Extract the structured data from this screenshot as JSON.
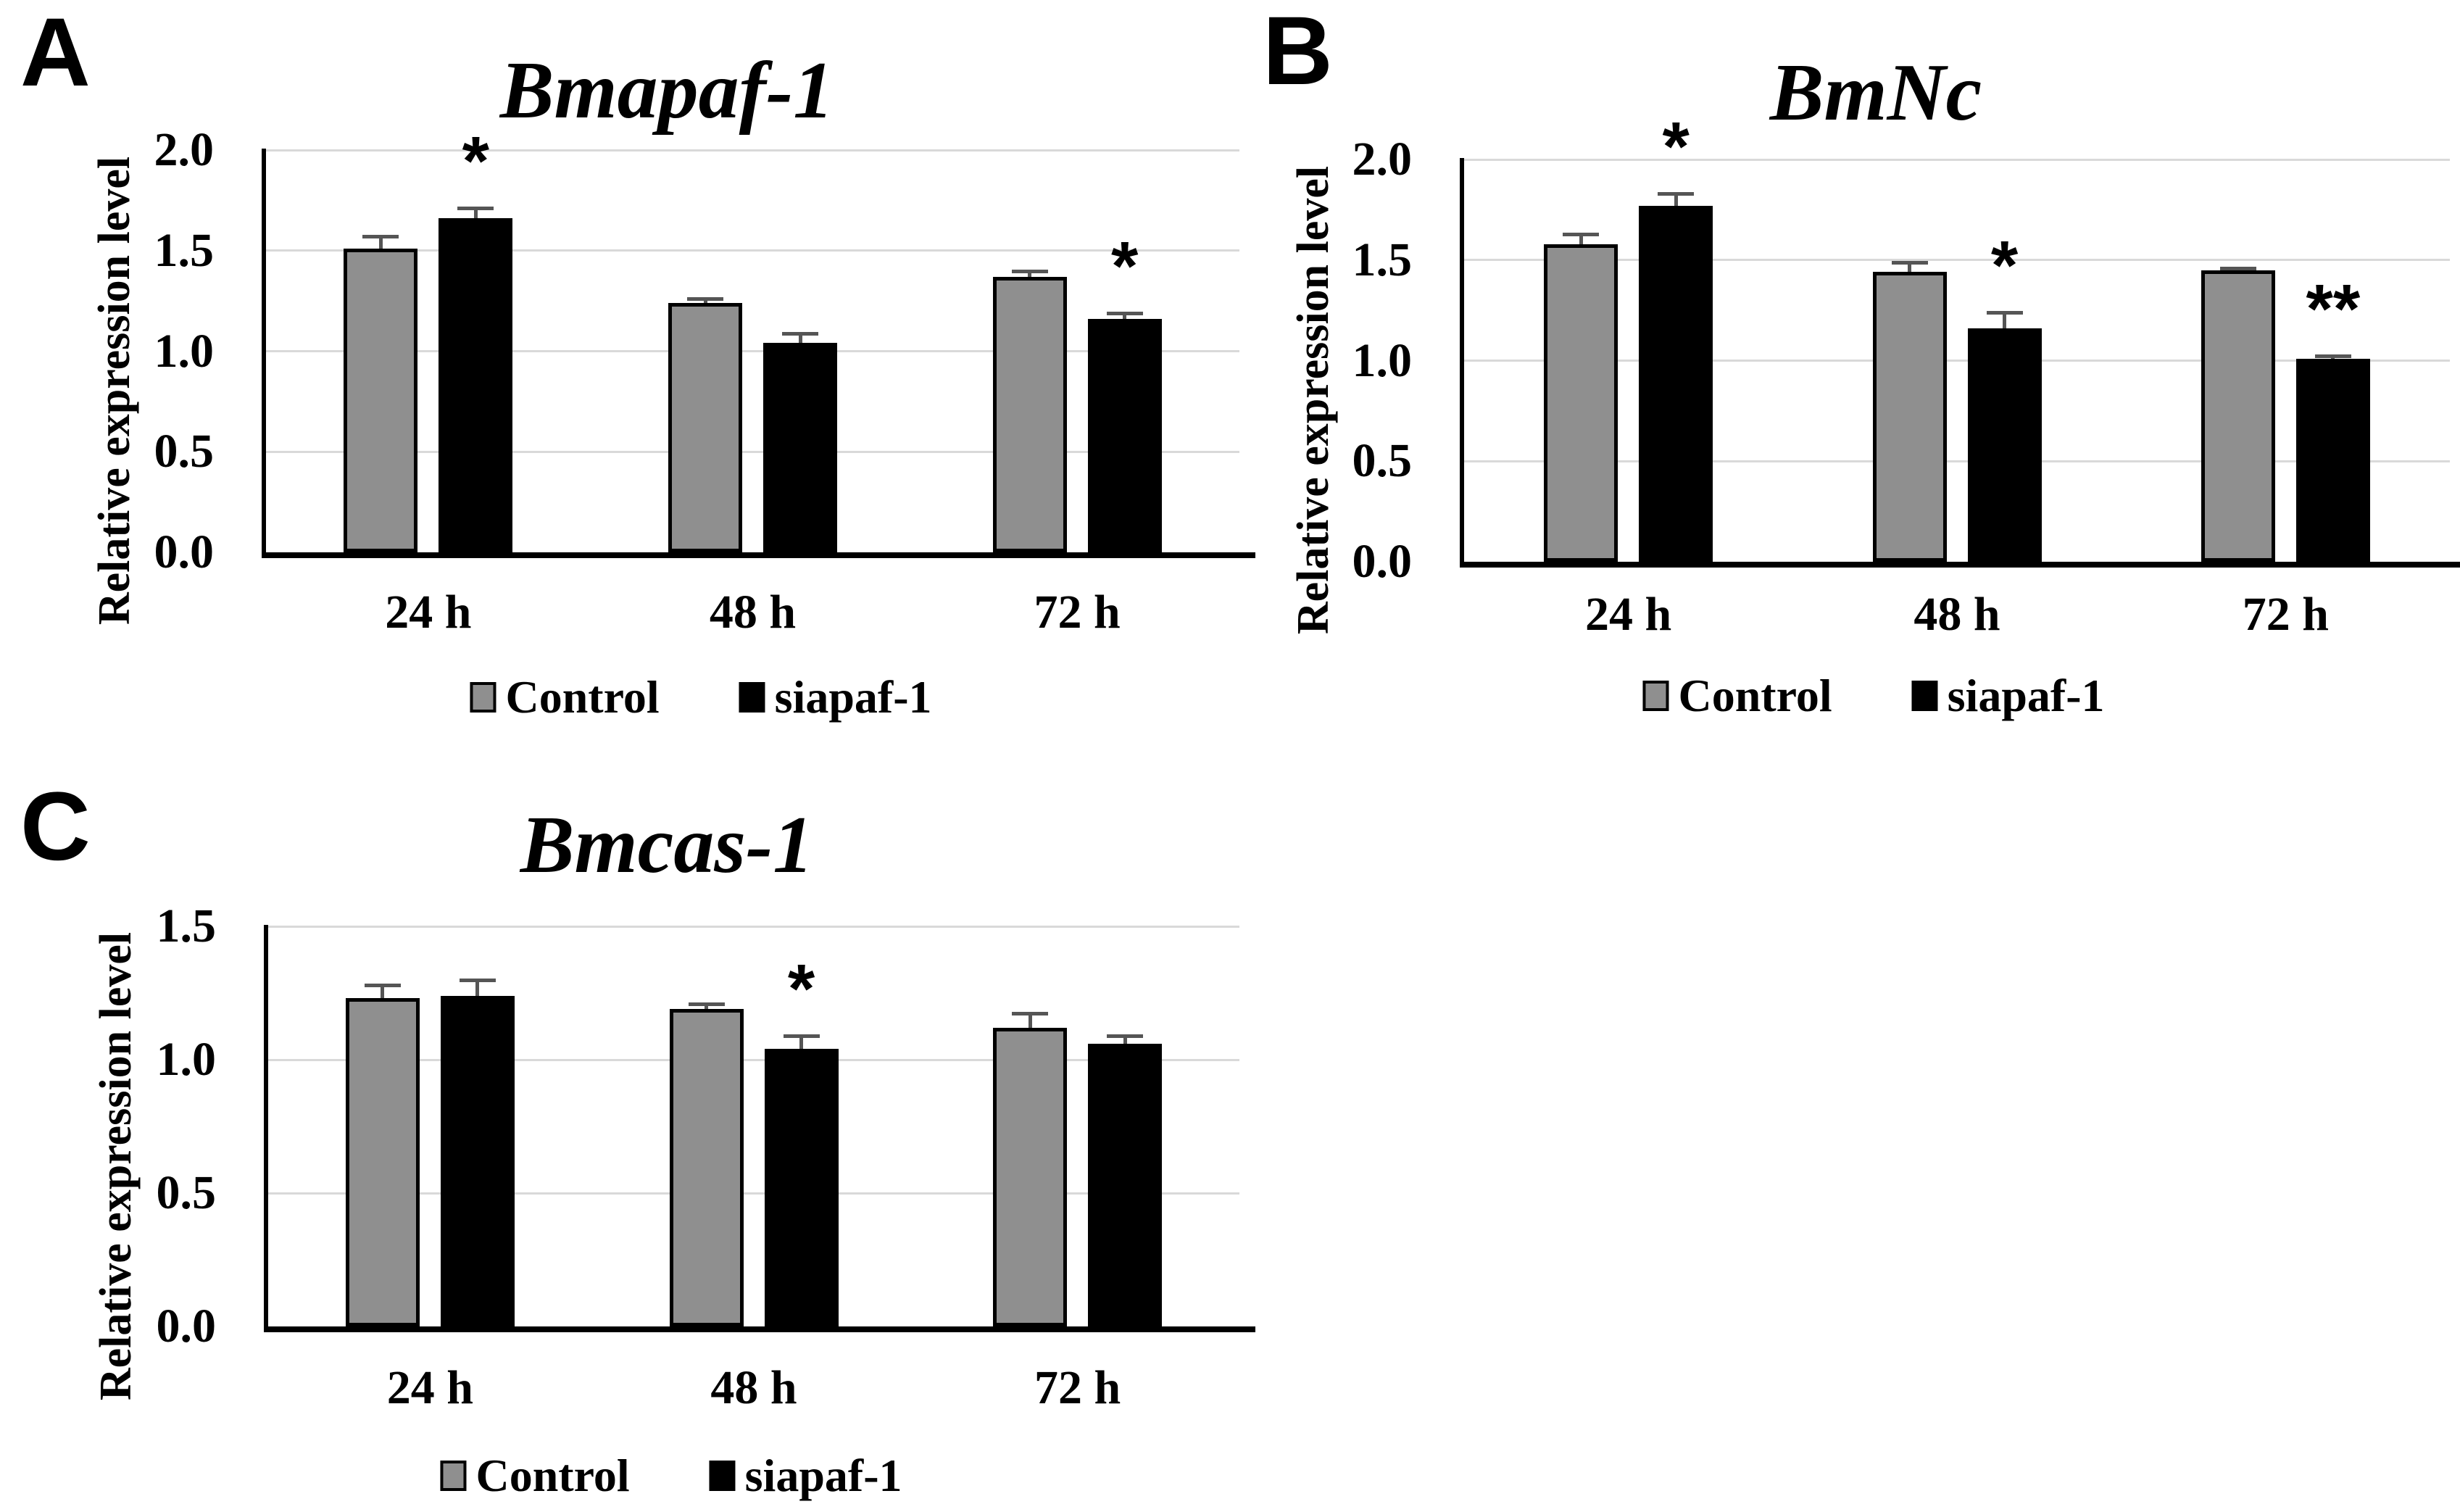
{
  "figure_type": "multi-panel-bar-figure",
  "colors": {
    "control_bar": "#8F8F8F",
    "sirna_bar": "#000000",
    "bar_border": "#000000",
    "error_bar": "#555555",
    "gridline": "#D9D9D9",
    "axis": "#000000",
    "background": "#FFFFFF"
  },
  "chart_data": [
    {
      "type": "bar",
      "panel_label": "A",
      "title": "Bmapaf-1",
      "ylabel": "Relative expression level",
      "xlabel": "",
      "ylim": [
        0.0,
        2.0
      ],
      "ymax": 2.0,
      "ytick_step": 0.5,
      "yticks": [
        "2.0",
        "1.5",
        "1.0",
        "0.5",
        "0.0"
      ],
      "grid": true,
      "legend_position": "bottom",
      "categories": [
        "24 h",
        "48 h",
        "72 h"
      ],
      "series": [
        {
          "name": "Control",
          "values": [
            1.51,
            1.24,
            1.37
          ],
          "errors": [
            0.06,
            0.02,
            0.03
          ]
        },
        {
          "name": "siapaf-1",
          "values": [
            1.66,
            1.04,
            1.16
          ],
          "errors": [
            0.05,
            0.05,
            0.03
          ]
        }
      ],
      "significance_on_siapaf1": [
        "*",
        "",
        "*"
      ]
    },
    {
      "type": "bar",
      "panel_label": "B",
      "title": "BmNc",
      "ylabel": "Relative expression level",
      "xlabel": "",
      "ylim": [
        0.0,
        2.0
      ],
      "ymax": 2.0,
      "ytick_step": 0.5,
      "yticks": [
        "2.0",
        "1.5",
        "1.0",
        "0.5",
        "0.0"
      ],
      "grid": true,
      "legend_position": "bottom",
      "categories": [
        "24 h",
        "48 h",
        "72 h"
      ],
      "series": [
        {
          "name": "Control",
          "values": [
            1.58,
            1.44,
            1.45
          ],
          "errors": [
            0.05,
            0.05,
            0.01
          ]
        },
        {
          "name": "siapaf-1",
          "values": [
            1.77,
            1.16,
            1.01
          ],
          "errors": [
            0.06,
            0.08,
            0.015
          ]
        }
      ],
      "significance_on_siapaf1": [
        "*",
        "*",
        "**"
      ]
    },
    {
      "type": "bar",
      "panel_label": "C",
      "title": "Bmcas-1",
      "ylabel": "Relative expression level",
      "xlabel": "",
      "ylim": [
        0.0,
        1.5
      ],
      "ymax": 1.5,
      "ytick_step": 0.5,
      "yticks": [
        "1.5",
        "1.0",
        "0.5",
        "0.0"
      ],
      "grid": true,
      "legend_position": "bottom",
      "categories": [
        "24 h",
        "48 h",
        "72 h"
      ],
      "series": [
        {
          "name": "Control",
          "values": [
            1.23,
            1.19,
            1.12
          ],
          "errors": [
            0.05,
            0.02,
            0.055
          ]
        },
        {
          "name": "siapaf-1",
          "values": [
            1.24,
            1.04,
            1.06
          ],
          "errors": [
            0.06,
            0.05,
            0.03
          ]
        }
      ],
      "significance_on_siapaf1": [
        "",
        "*",
        ""
      ]
    }
  ]
}
